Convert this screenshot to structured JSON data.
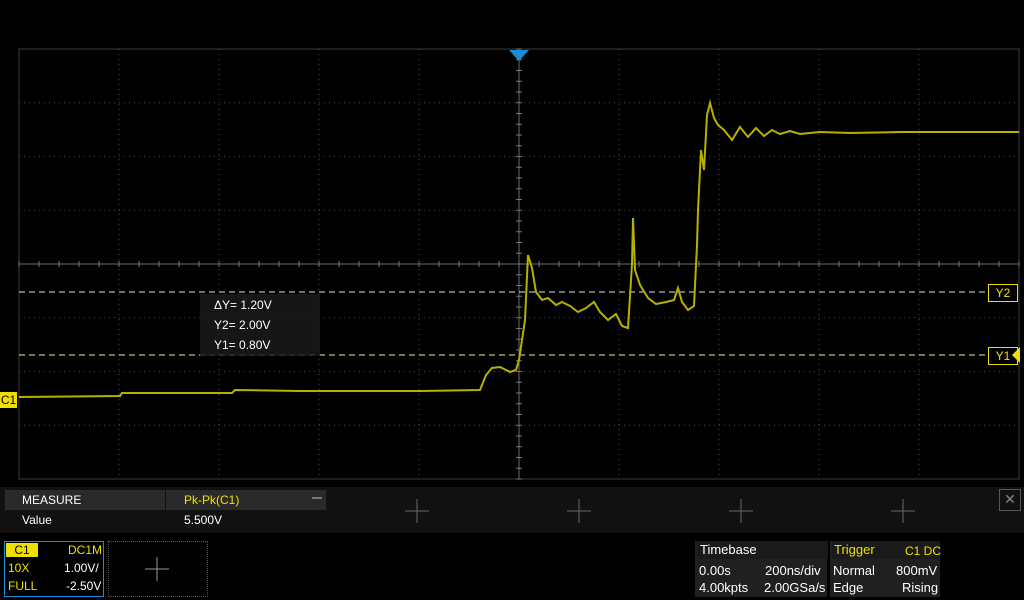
{
  "colors": {
    "trace": "#b8b000",
    "accent": "#f0e000",
    "channel_border": "#1e8cd6"
  },
  "cursors": {
    "dy": "ΔY= 1.20V",
    "y2": "Y2= 2.00V",
    "y1": "Y1= 0.80V",
    "y2_label": "Y2",
    "y1_label": "Y1"
  },
  "channel_marker": "C1",
  "measure": {
    "header_label": "MEASURE",
    "value_label": "Value",
    "item": "Pk-Pk(C1)",
    "item_value": "5.500V",
    "close": "✕"
  },
  "channel": {
    "name": "C1",
    "coupling": "DC1M",
    "probe": "10X",
    "scale": "1.00V/",
    "bandwidth": "FULL",
    "offset": "-2.50V"
  },
  "timebase": {
    "title": "Timebase",
    "delay": "0.00s",
    "scale": "200ns/div",
    "memory": "4.00kpts",
    "sample_rate": "2.00GSa/s"
  },
  "trigger": {
    "title": "Trigger",
    "source": "C1 DC",
    "mode": "Normal",
    "level": "800mV",
    "type": "Edge",
    "slope": "Rising"
  }
}
